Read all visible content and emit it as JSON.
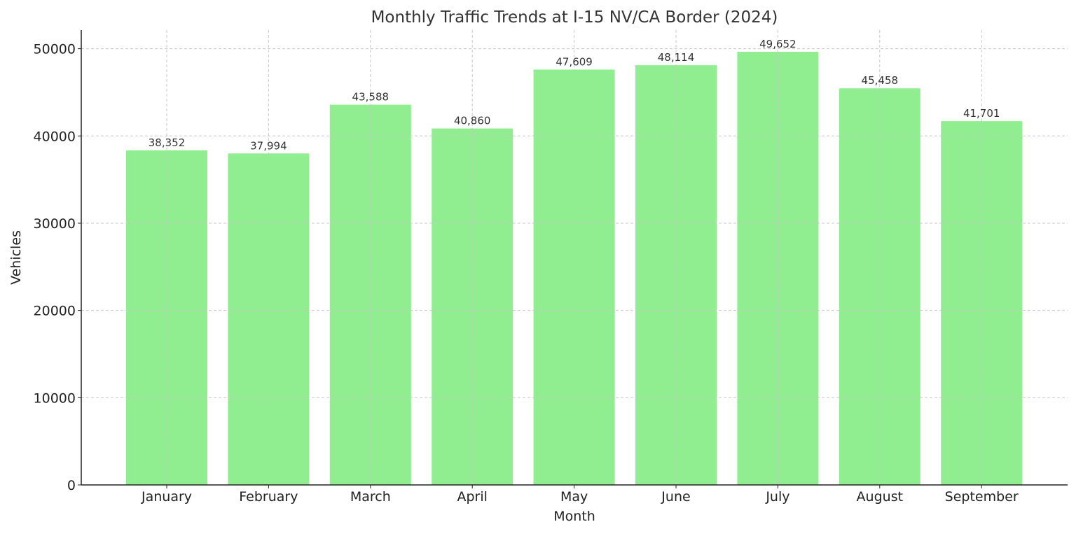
{
  "chart_data": {
    "type": "bar",
    "title": "Monthly Traffic Trends at I-15 NV/CA Border (2024)",
    "xlabel": "Month",
    "ylabel": "Vehicles",
    "categories": [
      "January",
      "February",
      "March",
      "April",
      "May",
      "June",
      "July",
      "August",
      "September"
    ],
    "values": [
      38352,
      37994,
      43588,
      40860,
      47609,
      48114,
      49652,
      45458,
      41701
    ],
    "data_labels": [
      "38,352",
      "37,994",
      "43,588",
      "40,860",
      "47,609",
      "48,114",
      "49,652",
      "45,458",
      "41,701"
    ],
    "yticks": [
      0,
      10000,
      20000,
      30000,
      40000,
      50000
    ],
    "ylim": [
      0,
      52135
    ],
    "grid": true,
    "bar_color": "#90ee90"
  }
}
